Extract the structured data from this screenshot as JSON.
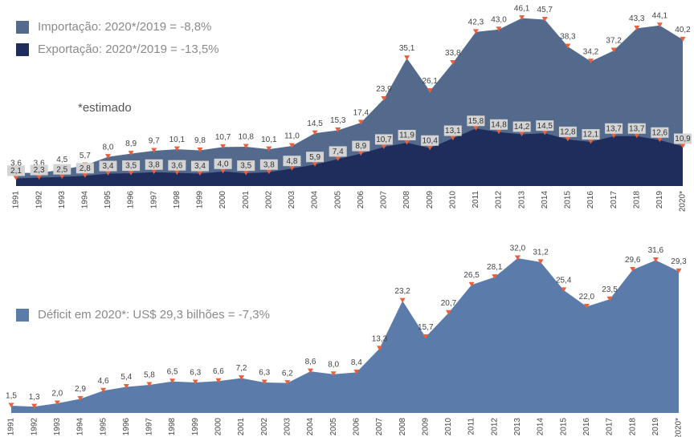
{
  "chart_data": [
    {
      "type": "area",
      "categories": [
        "1991",
        "1992",
        "1993",
        "1994",
        "1995",
        "1996",
        "1997",
        "1998",
        "1999",
        "2000",
        "2001",
        "2002",
        "2003",
        "2004",
        "2005",
        "2006",
        "2007",
        "2008",
        "2009",
        "2010",
        "2011",
        "2012",
        "2013",
        "2014",
        "2015",
        "2016",
        "2017",
        "2018",
        "2019",
        "2020*"
      ],
      "annotation": "*estimado",
      "ylim": [
        0,
        48
      ],
      "marker_color": "#e8613c",
      "series": [
        {
          "name": "Importação: 2020*/2019 = -8,8%",
          "color": "#536a8c",
          "values": [
            3.6,
            3.6,
            4.5,
            5.7,
            8.0,
            8.9,
            9.7,
            10.1,
            9.8,
            10.7,
            10.8,
            10.1,
            11.0,
            14.5,
            15.3,
            17.4,
            23.9,
            35.1,
            26.1,
            33.8,
            42.3,
            43.0,
            46.1,
            45.7,
            38.3,
            34.2,
            37.2,
            43.3,
            44.1,
            40.2
          ],
          "value_labels": [
            "3,6",
            "3,6",
            "4,5",
            "5,7",
            "8,0",
            "8,9",
            "9,7",
            "10,1",
            "9,8",
            "10,7",
            "10,8",
            "10,1",
            "11,0",
            "14,5",
            "15,3",
            "17,4",
            "23,9",
            "35,1",
            "26,1",
            "33,8",
            "42,3",
            "43,0",
            "46,1",
            "45,7",
            "38,3",
            "34,2",
            "37,2",
            "43,3",
            "44,1",
            "40,2"
          ]
        },
        {
          "name": "Exportação: 2020*/2019 = -13,5%",
          "color": "#1f2d5c",
          "values": [
            2.1,
            2.3,
            2.5,
            2.8,
            3.4,
            3.5,
            3.8,
            3.6,
            3.4,
            4.0,
            3.5,
            3.8,
            4.8,
            5.9,
            7.4,
            8.9,
            10.7,
            11.9,
            10.4,
            13.1,
            15.8,
            14.8,
            14.2,
            14.5,
            12.8,
            12.1,
            13.7,
            13.7,
            12.6,
            10.9
          ],
          "value_labels": [
            "2,1",
            "2,3",
            "2,5",
            "2,8",
            "3,4",
            "3,5",
            "3,8",
            "3,6",
            "3,4",
            "4,0",
            "3,5",
            "3,8",
            "4,8",
            "5,9",
            "7,4",
            "8,9",
            "10,7",
            "11,9",
            "10,4",
            "13,1",
            "15,8",
            "14,8",
            "14,2",
            "14,5",
            "12,8",
            "12,1",
            "13,7",
            "13,7",
            "12,6",
            "10,9"
          ]
        }
      ]
    },
    {
      "type": "area",
      "categories": [
        "1991",
        "1992",
        "1993",
        "1994",
        "1995",
        "1996",
        "1997",
        "1998",
        "1999",
        "2000",
        "2001",
        "2002",
        "2003",
        "2004",
        "2005",
        "2006",
        "2007",
        "2008",
        "2009",
        "2010",
        "2011",
        "2012",
        "2013",
        "2014",
        "2015",
        "2016",
        "2017",
        "2018",
        "2019",
        "2020*"
      ],
      "ylim": [
        0,
        34
      ],
      "marker_color": "#e8613c",
      "series": [
        {
          "name": "Déficit em 2020*: US$ 29,3 bilhões = -7,3%",
          "color": "#5b7baa",
          "values": [
            1.5,
            1.3,
            2.0,
            2.9,
            4.6,
            5.4,
            5.8,
            6.5,
            6.3,
            6.6,
            7.2,
            6.3,
            6.2,
            8.6,
            8.0,
            8.4,
            13.3,
            23.2,
            15.7,
            20.7,
            26.5,
            28.1,
            32.0,
            31.2,
            25.4,
            22.0,
            23.5,
            29.6,
            31.6,
            29.3
          ],
          "value_labels": [
            "1,5",
            "1,3",
            "2,0",
            "2,9",
            "4,6",
            "5,4",
            "5,8",
            "6,5",
            "6,3",
            "6,6",
            "7,2",
            "6,3",
            "6,2",
            "8,6",
            "8,0",
            "8,4",
            "13,3",
            "23,2",
            "15,7",
            "20,7",
            "26,5",
            "28,1",
            "32,0",
            "31,2",
            "25,4",
            "22,0",
            "23,5",
            "29,6",
            "31,6",
            "29,3"
          ]
        }
      ]
    }
  ]
}
